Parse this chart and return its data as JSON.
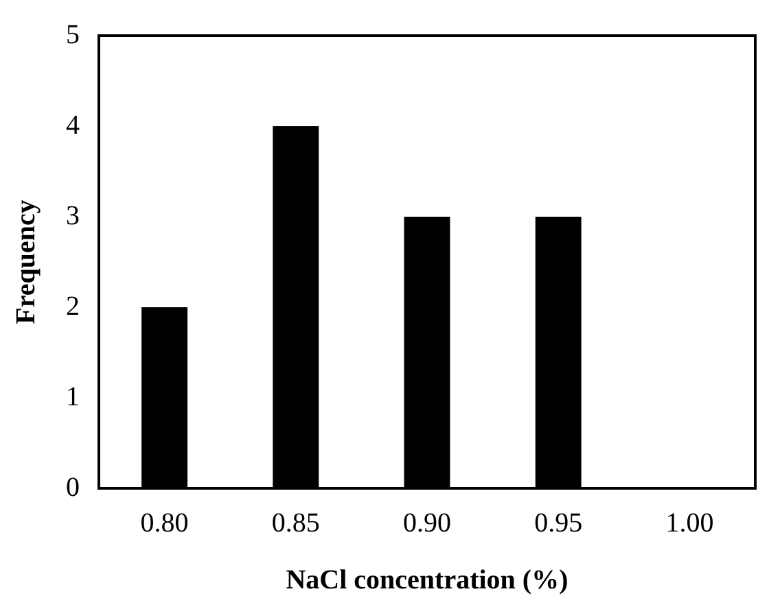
{
  "chart_data": {
    "type": "bar",
    "xlabel": "NaCl concentration (%)",
    "ylabel": "Frequency",
    "categories": [
      "0.80",
      "0.85",
      "0.90",
      "0.95",
      "1.00"
    ],
    "values": [
      2,
      4,
      3,
      3,
      0
    ],
    "color": "#000000",
    "ylim": [
      0,
      5
    ],
    "yticks": [
      0,
      1,
      2,
      3,
      4,
      5
    ],
    "grid": false,
    "legend": false
  }
}
